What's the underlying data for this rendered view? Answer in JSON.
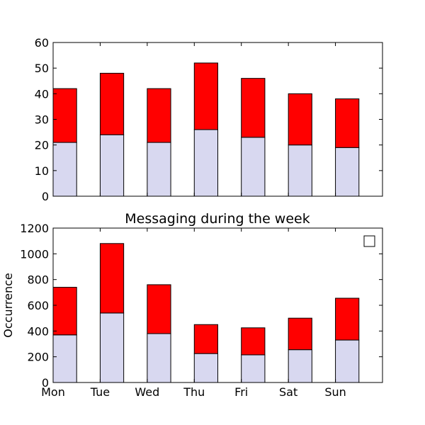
{
  "chart_data": [
    {
      "type": "bar",
      "stacked": true,
      "title": "",
      "xlabel": "",
      "ylabel": "",
      "categories": [
        "Mon",
        "Tue",
        "Wed",
        "Thu",
        "Fri",
        "Sat",
        "Sun"
      ],
      "show_x_tick_labels": false,
      "ylim": [
        0,
        60
      ],
      "yticks": [
        "0",
        "10",
        "20",
        "30",
        "40",
        "50",
        "60"
      ],
      "grid": false,
      "series": [
        {
          "values": [
            21,
            24,
            21,
            26,
            23,
            20,
            19
          ],
          "color": "#d8d8f0"
        },
        {
          "values": [
            21,
            24,
            21,
            26,
            23,
            20,
            19
          ],
          "color": "#ff0000"
        }
      ]
    },
    {
      "type": "bar",
      "stacked": true,
      "title": "Messaging during the week",
      "xlabel": "",
      "ylabel": "Occurrence",
      "categories": [
        "Mon",
        "Tue",
        "Wed",
        "Thu",
        "Fri",
        "Sat",
        "Sun"
      ],
      "show_x_tick_labels": true,
      "ylim": [
        0,
        1200
      ],
      "yticks": [
        "0",
        "200",
        "400",
        "600",
        "800",
        "1000",
        "1200"
      ],
      "grid": false,
      "legend": "top-right",
      "series": [
        {
          "values": [
            370,
            540,
            380,
            225,
            215,
            255,
            330
          ],
          "color": "#d8d8f0"
        },
        {
          "values": [
            370,
            540,
            380,
            225,
            210,
            245,
            325
          ],
          "color": "#ff0000"
        }
      ]
    }
  ]
}
